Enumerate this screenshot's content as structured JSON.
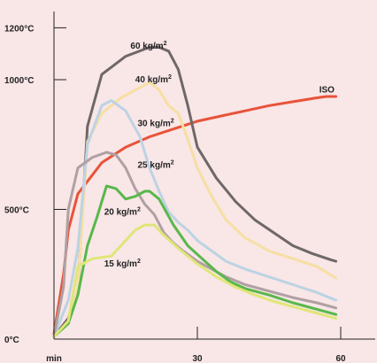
{
  "chart_data": {
    "type": "line",
    "title": "",
    "xlabel": "",
    "ylabel": "",
    "xlim": [
      0,
      64
    ],
    "ylim": [
      0,
      1300
    ],
    "x_ticks": [
      {
        "value": 0,
        "label": "min"
      },
      {
        "value": 30,
        "label": "30"
      },
      {
        "value": 60,
        "label": "60"
      }
    ],
    "y_ticks": [
      {
        "value": 0,
        "label": "0°C"
      },
      {
        "value": 500,
        "label": "500°C"
      },
      {
        "value": 1000,
        "label": "1000°C"
      },
      {
        "value": 1200,
        "label": "1200°C"
      }
    ],
    "grid": false,
    "series": [
      {
        "name": "ISO",
        "color": "#e8533a",
        "points": [
          [
            0,
            20
          ],
          [
            2,
            250
          ],
          [
            3,
            420
          ],
          [
            5,
            560
          ],
          [
            10,
            680
          ],
          [
            15,
            740
          ],
          [
            20,
            780
          ],
          [
            25,
            810
          ],
          [
            30,
            840
          ],
          [
            35,
            860
          ],
          [
            40,
            880
          ],
          [
            45,
            900
          ],
          [
            50,
            915
          ],
          [
            55,
            930
          ],
          [
            57,
            935
          ],
          [
            59,
            935
          ]
        ]
      },
      {
        "name": "60 kg/m²",
        "color": "#6f6768",
        "points": [
          [
            0,
            10
          ],
          [
            3,
            80
          ],
          [
            5,
            190
          ],
          [
            7,
            820
          ],
          [
            10,
            1020
          ],
          [
            15,
            1090
          ],
          [
            20,
            1125
          ],
          [
            22,
            1125
          ],
          [
            24,
            1110
          ],
          [
            26,
            1040
          ],
          [
            28,
            900
          ],
          [
            30,
            740
          ],
          [
            34,
            620
          ],
          [
            38,
            530
          ],
          [
            42,
            460
          ],
          [
            46,
            410
          ],
          [
            50,
            360
          ],
          [
            54,
            330
          ],
          [
            58,
            305
          ],
          [
            59,
            300
          ]
        ]
      },
      {
        "name": "40 kg/m²",
        "color": "#f6dfa3",
        "points": [
          [
            0,
            10
          ],
          [
            3,
            60
          ],
          [
            5,
            200
          ],
          [
            7,
            760
          ],
          [
            10,
            870
          ],
          [
            14,
            930
          ],
          [
            18,
            970
          ],
          [
            20,
            990
          ],
          [
            22,
            960
          ],
          [
            24,
            900
          ],
          [
            26,
            870
          ],
          [
            28,
            770
          ],
          [
            30,
            660
          ],
          [
            33,
            550
          ],
          [
            36,
            460
          ],
          [
            40,
            390
          ],
          [
            45,
            340
          ],
          [
            50,
            310
          ],
          [
            55,
            280
          ],
          [
            59,
            235
          ]
        ]
      },
      {
        "name": "30 kg/m²",
        "color": "#bcd3e3",
        "points": [
          [
            0,
            10
          ],
          [
            3,
            150
          ],
          [
            5,
            350
          ],
          [
            7,
            750
          ],
          [
            10,
            900
          ],
          [
            12,
            920
          ],
          [
            15,
            880
          ],
          [
            18,
            780
          ],
          [
            20,
            660
          ],
          [
            22,
            570
          ],
          [
            24,
            490
          ],
          [
            26,
            450
          ],
          [
            28,
            420
          ],
          [
            30,
            380
          ],
          [
            33,
            340
          ],
          [
            36,
            300
          ],
          [
            40,
            270
          ],
          [
            45,
            240
          ],
          [
            50,
            210
          ],
          [
            55,
            180
          ],
          [
            59,
            150
          ]
        ]
      },
      {
        "name": "25 kg/m²",
        "color": "#b0a0a3",
        "points": [
          [
            0,
            10
          ],
          [
            2,
            200
          ],
          [
            3,
            500
          ],
          [
            5,
            660
          ],
          [
            8,
            700
          ],
          [
            11,
            720
          ],
          [
            13,
            710
          ],
          [
            15,
            660
          ],
          [
            17,
            580
          ],
          [
            19,
            520
          ],
          [
            21,
            480
          ],
          [
            23,
            410
          ],
          [
            25,
            370
          ],
          [
            27,
            340
          ],
          [
            30,
            300
          ],
          [
            33,
            270
          ],
          [
            36,
            240
          ],
          [
            40,
            210
          ],
          [
            45,
            185
          ],
          [
            50,
            160
          ],
          [
            55,
            140
          ],
          [
            59,
            120
          ]
        ]
      },
      {
        "name": "20 kg/m²",
        "color": "#58b84a",
        "points": [
          [
            0,
            10
          ],
          [
            3,
            60
          ],
          [
            5,
            170
          ],
          [
            7,
            360
          ],
          [
            9,
            470
          ],
          [
            11,
            590
          ],
          [
            13,
            580
          ],
          [
            15,
            540
          ],
          [
            17,
            550
          ],
          [
            19,
            570
          ],
          [
            20,
            570
          ],
          [
            22,
            540
          ],
          [
            25,
            440
          ],
          [
            28,
            360
          ],
          [
            31,
            310
          ],
          [
            34,
            260
          ],
          [
            37,
            220
          ],
          [
            40,
            195
          ],
          [
            45,
            170
          ],
          [
            50,
            140
          ],
          [
            55,
            115
          ],
          [
            59,
            95
          ]
        ]
      },
      {
        "name": "15 kg/m²",
        "color": "#dfe678",
        "points": [
          [
            0,
            10
          ],
          [
            3,
            70
          ],
          [
            5,
            280
          ],
          [
            8,
            310
          ],
          [
            12,
            320
          ],
          [
            14,
            360
          ],
          [
            17,
            420
          ],
          [
            19,
            440
          ],
          [
            21,
            440
          ],
          [
            23,
            400
          ],
          [
            26,
            350
          ],
          [
            30,
            290
          ],
          [
            34,
            240
          ],
          [
            38,
            200
          ],
          [
            42,
            170
          ],
          [
            46,
            145
          ],
          [
            50,
            125
          ],
          [
            55,
            100
          ],
          [
            59,
            80
          ]
        ]
      }
    ],
    "annotations": [
      {
        "text": "60 kg/m",
        "sup": "2",
        "x": 16,
        "y": 1120,
        "color": "#222222"
      },
      {
        "text": "40 kg/m",
        "sup": "2",
        "x": 17,
        "y": 990,
        "color": "#222222"
      },
      {
        "text": "30 kg/m",
        "sup": "2",
        "x": 17.5,
        "y": 820,
        "color": "#222222"
      },
      {
        "text": "25 kg/m",
        "sup": "2",
        "x": 17.5,
        "y": 660,
        "color": "#222222"
      },
      {
        "text": "20 kg/m",
        "sup": "2",
        "x": 10.5,
        "y": 480,
        "color": "#222222"
      },
      {
        "text": "15 kg/m",
        "sup": "2",
        "x": 10.5,
        "y": 280,
        "color": "#222222"
      },
      {
        "text": "ISO",
        "sup": "",
        "x": 55.5,
        "y": 950,
        "color": "#e8533a"
      }
    ]
  }
}
